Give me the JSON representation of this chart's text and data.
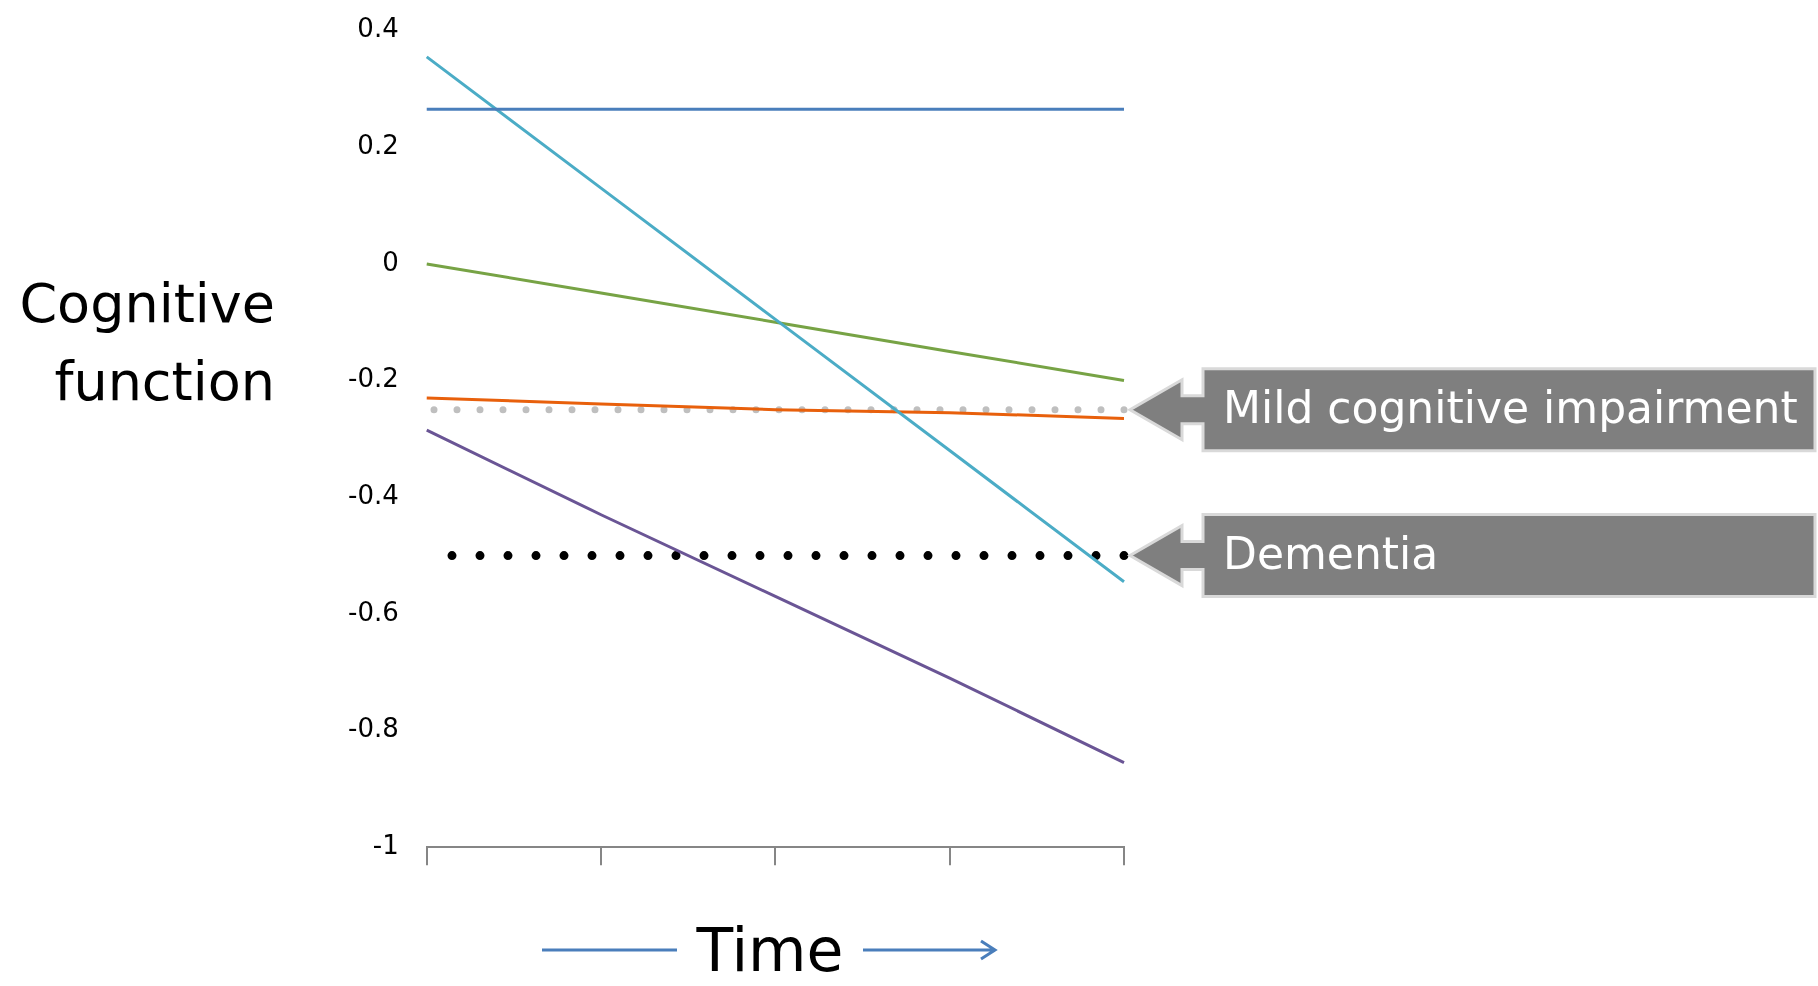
{
  "chart_data": {
    "type": "line",
    "xlabel": "Time",
    "ylabel": "Cognitive function",
    "categories": [
      null,
      null,
      null,
      null,
      null
    ],
    "ylim": [
      -1,
      0.4
    ],
    "yticks": [
      -1,
      -0.8,
      -0.6,
      -0.4,
      -0.2,
      0,
      0.2,
      0.4
    ],
    "grid": false,
    "legend": false,
    "marker": "none",
    "line_style": "solid",
    "series": [
      {
        "color": "#4a7ebb",
        "values": [
          0.265,
          0.265,
          0.265,
          0.265,
          0.265
        ]
      },
      {
        "color": "#4bacc6",
        "values": [
          0.355,
          0.13,
          -0.095,
          -0.32,
          -0.545
        ]
      },
      {
        "color": "#77a345",
        "values": [
          0,
          -0.05,
          -0.1,
          -0.15,
          -0.2
        ]
      },
      {
        "color": "#e8600c",
        "values": [
          -0.23,
          -0.24,
          -0.25,
          -0.255,
          -0.265
        ]
      },
      {
        "color": "#6a5595",
        "values": [
          -0.285,
          -0.43,
          -0.57,
          -0.71,
          -0.855
        ]
      }
    ],
    "ref_lines": [
      {
        "axis": "y",
        "value": -0.25,
        "label": "Mild cognitive impairment",
        "color": "#bfbfbf",
        "line_style": "dotted"
      },
      {
        "axis": "y",
        "value": -0.5,
        "label": "Dementia",
        "color": "#000000",
        "line_style": "dotted"
      }
    ]
  }
}
